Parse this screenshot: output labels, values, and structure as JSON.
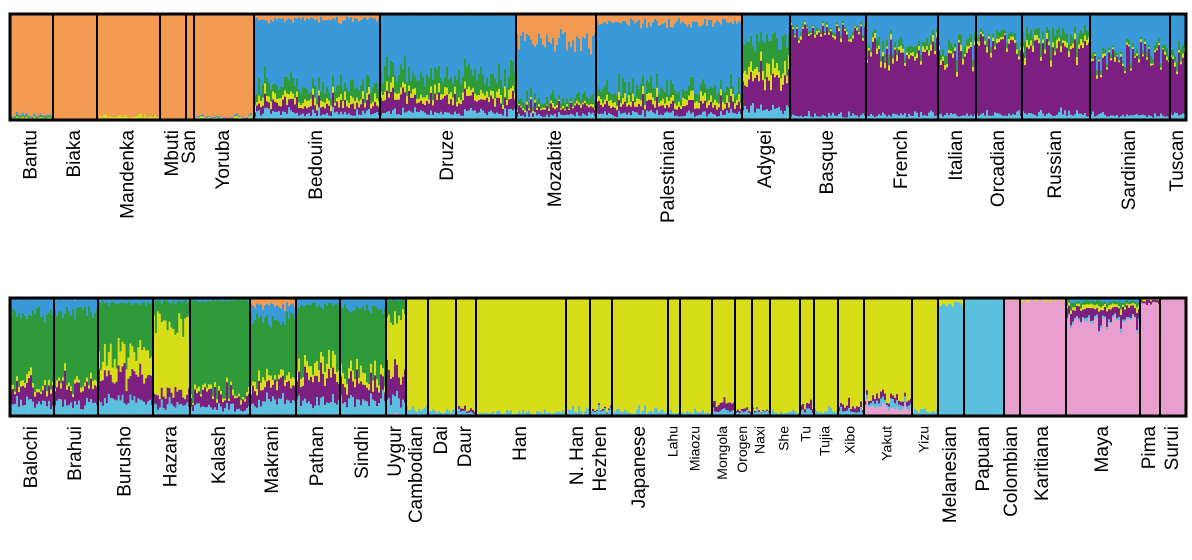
{
  "chart_data": [
    {
      "type": "bar",
      "stacked": true,
      "ylim": [
        0,
        1
      ],
      "legend": "none",
      "grid": false,
      "components": [
        {
          "name": "",
          "color": "#f29a52"
        },
        {
          "name": "",
          "color": "#3a9ad9"
        },
        {
          "name": "",
          "color": "#2e9a3a"
        },
        {
          "name": "",
          "color": "#d8dd1a"
        },
        {
          "name": "",
          "color": "#7b2081"
        },
        {
          "name": "",
          "color": "#5bc0de"
        },
        {
          "name": "",
          "color": "#e89fd0"
        }
      ],
      "populations": [
        {
          "name": "Bantu",
          "start": 10,
          "end": 53,
          "size": "normal",
          "proportions": [
            0.96,
            0.01,
            0.01,
            0.01,
            0.0,
            0.01,
            0.0
          ]
        },
        {
          "name": "Biaka",
          "start": 53,
          "end": 97,
          "size": "normal",
          "proportions": [
            1.0,
            0,
            0,
            0,
            0,
            0,
            0
          ]
        },
        {
          "name": "Mandenka",
          "start": 97,
          "end": 160,
          "size": "normal",
          "proportions": [
            0.97,
            0.0,
            0.0,
            0.02,
            0.0,
            0.01,
            0.0
          ]
        },
        {
          "name": "Mbuti",
          "start": 160,
          "end": 186,
          "size": "normal",
          "proportions": [
            1.0,
            0,
            0,
            0,
            0,
            0,
            0
          ]
        },
        {
          "name": "San",
          "start": 186,
          "end": 194,
          "size": "normal",
          "proportions": [
            1.0,
            0,
            0,
            0,
            0,
            0,
            0
          ]
        },
        {
          "name": "Yoruba",
          "start": 194,
          "end": 254,
          "size": "normal",
          "proportions": [
            0.97,
            0.01,
            0.0,
            0.01,
            0.0,
            0.01,
            0.0
          ]
        },
        {
          "name": "Bedouin",
          "start": 254,
          "end": 380,
          "size": "normal",
          "proportions": [
            0.05,
            0.62,
            0.12,
            0.06,
            0.08,
            0.07,
            0.0
          ]
        },
        {
          "name": "Druze",
          "start": 380,
          "end": 516,
          "size": "normal",
          "proportions": [
            0.01,
            0.56,
            0.16,
            0.07,
            0.13,
            0.07,
            0.0
          ]
        },
        {
          "name": "Mozabite",
          "start": 516,
          "end": 596,
          "size": "normal",
          "proportions": [
            0.25,
            0.55,
            0.06,
            0.02,
            0.07,
            0.05,
            0.0
          ]
        },
        {
          "name": "Palestinian",
          "start": 596,
          "end": 742,
          "size": "normal",
          "proportions": [
            0.08,
            0.62,
            0.1,
            0.06,
            0.08,
            0.06,
            0.0
          ]
        },
        {
          "name": "Adygei",
          "start": 742,
          "end": 790,
          "size": "normal",
          "proportions": [
            0.0,
            0.26,
            0.26,
            0.1,
            0.28,
            0.1,
            0.0
          ]
        },
        {
          "name": "Basque",
          "start": 790,
          "end": 866,
          "size": "normal",
          "proportions": [
            0.0,
            0.12,
            0.02,
            0.02,
            0.8,
            0.04,
            0.0
          ]
        },
        {
          "name": "French",
          "start": 866,
          "end": 938,
          "size": "normal",
          "proportions": [
            0.0,
            0.25,
            0.06,
            0.04,
            0.6,
            0.05,
            0.0
          ]
        },
        {
          "name": "Italian",
          "start": 938,
          "end": 976,
          "size": "normal",
          "proportions": [
            0.0,
            0.3,
            0.07,
            0.04,
            0.54,
            0.05,
            0.0
          ]
        },
        {
          "name": "Orcadian",
          "start": 976,
          "end": 1022,
          "size": "normal",
          "proportions": [
            0.0,
            0.2,
            0.05,
            0.03,
            0.67,
            0.05,
            0.0
          ]
        },
        {
          "name": "Russian",
          "start": 1022,
          "end": 1090,
          "size": "normal",
          "proportions": [
            0.0,
            0.2,
            0.1,
            0.05,
            0.59,
            0.06,
            0.0
          ]
        },
        {
          "name": "Sardinian",
          "start": 1090,
          "end": 1170,
          "size": "normal",
          "proportions": [
            0.0,
            0.36,
            0.04,
            0.02,
            0.54,
            0.04,
            0.0
          ]
        },
        {
          "name": "Tuscan",
          "start": 1170,
          "end": 1186,
          "size": "normal",
          "proportions": [
            0.0,
            0.34,
            0.08,
            0.03,
            0.5,
            0.05,
            0.0
          ]
        }
      ]
    },
    {
      "type": "bar",
      "stacked": true,
      "ylim": [
        0,
        1
      ],
      "legend": "none",
      "grid": false,
      "components": [
        {
          "name": "",
          "color": "#f29a52"
        },
        {
          "name": "",
          "color": "#3a9ad9"
        },
        {
          "name": "",
          "color": "#2e9a3a"
        },
        {
          "name": "",
          "color": "#d8dd1a"
        },
        {
          "name": "",
          "color": "#7b2081"
        },
        {
          "name": "",
          "color": "#5bc0de"
        },
        {
          "name": "",
          "color": "#e89fd0"
        }
      ],
      "populations": [
        {
          "name": "Balochi",
          "start": 10,
          "end": 54,
          "size": "normal",
          "proportions": [
            0.01,
            0.12,
            0.58,
            0.04,
            0.14,
            0.1,
            0.01
          ]
        },
        {
          "name": "Brahui",
          "start": 54,
          "end": 98,
          "size": "normal",
          "proportions": [
            0.01,
            0.1,
            0.6,
            0.04,
            0.14,
            0.1,
            0.01
          ]
        },
        {
          "name": "Burusho",
          "start": 98,
          "end": 153,
          "size": "normal",
          "proportions": [
            0.0,
            0.04,
            0.46,
            0.18,
            0.2,
            0.11,
            0.01
          ]
        },
        {
          "name": "Hazara",
          "start": 153,
          "end": 190,
          "size": "normal",
          "proportions": [
            0.0,
            0.03,
            0.18,
            0.6,
            0.1,
            0.08,
            0.01
          ]
        },
        {
          "name": "Kalash",
          "start": 190,
          "end": 250,
          "size": "normal",
          "proportions": [
            0.0,
            0.02,
            0.78,
            0.03,
            0.1,
            0.07,
            0.0
          ]
        },
        {
          "name": "Makrani",
          "start": 250,
          "end": 296,
          "size": "normal",
          "proportions": [
            0.06,
            0.12,
            0.52,
            0.06,
            0.12,
            0.11,
            0.01
          ]
        },
        {
          "name": "Pathan",
          "start": 296,
          "end": 340,
          "size": "normal",
          "proportions": [
            0.0,
            0.06,
            0.5,
            0.1,
            0.22,
            0.11,
            0.01
          ]
        },
        {
          "name": "Sindhi",
          "start": 340,
          "end": 386,
          "size": "normal",
          "proportions": [
            0.01,
            0.08,
            0.56,
            0.08,
            0.14,
            0.12,
            0.01
          ]
        },
        {
          "name": "Uygur",
          "start": 386,
          "end": 406,
          "size": "normal",
          "proportions": [
            0.0,
            0.02,
            0.14,
            0.46,
            0.24,
            0.12,
            0.02
          ]
        },
        {
          "name": "Cambodian",
          "start": 406,
          "end": 428,
          "size": "normal",
          "proportions": [
            0.0,
            0.0,
            0.0,
            0.94,
            0.0,
            0.06,
            0.0
          ]
        },
        {
          "name": "Dai",
          "start": 428,
          "end": 456,
          "size": "normal",
          "proportions": [
            0.0,
            0.0,
            0.0,
            0.96,
            0.0,
            0.04,
            0.0
          ]
        },
        {
          "name": "Daur",
          "start": 456,
          "end": 476,
          "size": "normal",
          "proportions": [
            0.0,
            0.0,
            0.0,
            0.95,
            0.02,
            0.03,
            0.0
          ]
        },
        {
          "name": "Han",
          "start": 476,
          "end": 566,
          "size": "normal",
          "proportions": [
            0.0,
            0.0,
            0.0,
            0.97,
            0.0,
            0.03,
            0.0
          ]
        },
        {
          "name": "N. Han",
          "start": 566,
          "end": 590,
          "size": "normal",
          "proportions": [
            0.0,
            0.0,
            0.0,
            0.96,
            0.0,
            0.04,
            0.0
          ]
        },
        {
          "name": "Hezhen",
          "start": 590,
          "end": 612,
          "size": "normal",
          "proportions": [
            0.0,
            0.0,
            0.0,
            0.95,
            0.01,
            0.04,
            0.0
          ]
        },
        {
          "name": "Japanese",
          "start": 612,
          "end": 668,
          "size": "normal",
          "proportions": [
            0.0,
            0.0,
            0.0,
            0.96,
            0.0,
            0.04,
            0.0
          ]
        },
        {
          "name": "Lahu",
          "start": 668,
          "end": 680,
          "size": "small",
          "proportions": [
            0.0,
            0.0,
            0.0,
            0.97,
            0.0,
            0.03,
            0.0
          ]
        },
        {
          "name": "Miaozu",
          "start": 680,
          "end": 712,
          "size": "small",
          "proportions": [
            0.0,
            0.0,
            0.0,
            0.97,
            0.0,
            0.03,
            0.0
          ]
        },
        {
          "name": "Mongola",
          "start": 712,
          "end": 735,
          "size": "small",
          "proportions": [
            0.0,
            0.0,
            0.0,
            0.9,
            0.06,
            0.04,
            0.0
          ]
        },
        {
          "name": "Orogen",
          "start": 735,
          "end": 752,
          "size": "small",
          "proportions": [
            0.0,
            0.0,
            0.0,
            0.95,
            0.02,
            0.03,
            0.0
          ]
        },
        {
          "name": "Naxi",
          "start": 752,
          "end": 770,
          "size": "small",
          "proportions": [
            0.0,
            0.0,
            0.0,
            0.95,
            0.01,
            0.04,
            0.0
          ]
        },
        {
          "name": "She",
          "start": 770,
          "end": 800,
          "size": "small",
          "proportions": [
            0.0,
            0.0,
            0.0,
            0.97,
            0.0,
            0.03,
            0.0
          ]
        },
        {
          "name": "Tu",
          "start": 800,
          "end": 814,
          "size": "small",
          "proportions": [
            0.0,
            0.0,
            0.0,
            0.9,
            0.05,
            0.05,
            0.0
          ]
        },
        {
          "name": "Tujia",
          "start": 814,
          "end": 838,
          "size": "small",
          "proportions": [
            0.0,
            0.0,
            0.0,
            0.96,
            0.0,
            0.04,
            0.0
          ]
        },
        {
          "name": "Xibo",
          "start": 838,
          "end": 864,
          "size": "small",
          "proportions": [
            0.0,
            0.0,
            0.0,
            0.92,
            0.04,
            0.04,
            0.0
          ]
        },
        {
          "name": "Yakut",
          "start": 864,
          "end": 912,
          "size": "small",
          "proportions": [
            0.0,
            0.0,
            0.0,
            0.84,
            0.04,
            0.04,
            0.08
          ]
        },
        {
          "name": "Yizu",
          "start": 912,
          "end": 938,
          "size": "small",
          "proportions": [
            0.0,
            0.0,
            0.0,
            0.96,
            0.0,
            0.04,
            0.0
          ]
        },
        {
          "name": "Melanesian",
          "start": 938,
          "end": 964,
          "size": "normal",
          "proportions": [
            0.0,
            0.0,
            0.0,
            0.06,
            0.0,
            0.94,
            0.0
          ]
        },
        {
          "name": "Papuan",
          "start": 964,
          "end": 1004,
          "size": "normal",
          "proportions": [
            0.0,
            0.0,
            0.0,
            0.0,
            0.0,
            1.0,
            0.0
          ]
        },
        {
          "name": "Colombian",
          "start": 1004,
          "end": 1020,
          "size": "normal",
          "proportions": [
            0.0,
            0.0,
            0.0,
            0.02,
            0.0,
            0.0,
            0.98
          ]
        },
        {
          "name": "Karitiana",
          "start": 1020,
          "end": 1066,
          "size": "normal",
          "proportions": [
            0.0,
            0.0,
            0.0,
            0.02,
            0.0,
            0.0,
            0.98
          ]
        },
        {
          "name": "Maya",
          "start": 1066,
          "end": 1140,
          "size": "normal",
          "proportions": [
            0.0,
            0.03,
            0.03,
            0.03,
            0.09,
            0.02,
            0.8
          ]
        },
        {
          "name": "Pima",
          "start": 1140,
          "end": 1160,
          "size": "normal",
          "proportions": [
            0.0,
            0.0,
            0.0,
            0.02,
            0.02,
            0.0,
            0.96
          ]
        },
        {
          "name": "Surui",
          "start": 1160,
          "end": 1186,
          "size": "normal",
          "proportions": [
            0.0,
            0.0,
            0.0,
            0.0,
            0.0,
            0.0,
            1.0
          ]
        }
      ]
    }
  ]
}
